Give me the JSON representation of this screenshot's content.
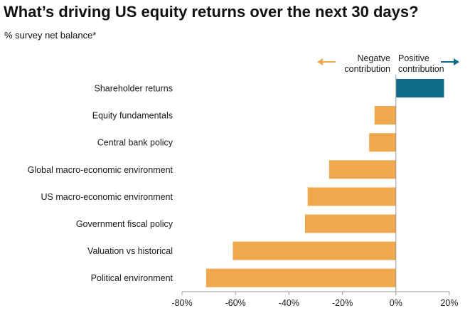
{
  "header": {
    "title": "What’s driving US equity returns over the next 30 days?",
    "subtitle": "% survey net balance*"
  },
  "legend": {
    "negative": [
      "Negatve",
      "contribution"
    ],
    "positive": [
      "Positive",
      "contribution"
    ]
  },
  "colors": {
    "negative": "#F0A84E",
    "positive": "#0E6B8A",
    "axis": "#9a9a9a"
  },
  "chart_data": {
    "type": "bar",
    "orientation": "horizontal",
    "categories": [
      "Shareholder returns",
      "Equity fundamentals",
      "Central bank policy",
      "Global macro-economic environment",
      "US macro-economic environment",
      "Government fiscal policy",
      "Valuation vs historical",
      "Political environment"
    ],
    "values": [
      18,
      -8,
      -10,
      -25,
      -33,
      -34,
      -61,
      -71
    ],
    "xlim": [
      -80,
      20
    ],
    "xticks": [
      -80,
      -60,
      -40,
      -20,
      0,
      20
    ],
    "xtick_labels": [
      "-80%",
      "-60%",
      "-40%",
      "-20%",
      "0%",
      "20%"
    ],
    "grid": false
  }
}
